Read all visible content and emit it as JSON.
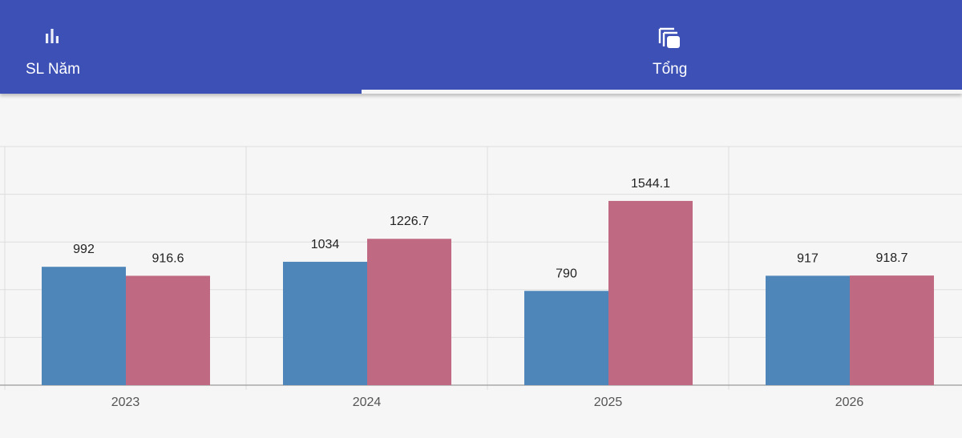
{
  "tabs": [
    {
      "label": "SL Năm",
      "icon": "bar-chart-icon",
      "selected": false
    },
    {
      "label": "Tổng",
      "icon": "layers-icon",
      "selected": true
    }
  ],
  "colors": {
    "app_bar": "#3c50b5",
    "series_a": "#4e86b9",
    "series_b": "#c06983",
    "grid": "#dddddd"
  },
  "chart_data": {
    "type": "bar",
    "categories": [
      "2023",
      "2024",
      "2025",
      "2026"
    ],
    "series": [
      {
        "values": [
          992,
          1034,
          790,
          917
        ]
      },
      {
        "values": [
          916.6,
          1226.7,
          1544.1,
          918.7
        ]
      }
    ],
    "ylim": [
      0,
      2000
    ],
    "grid": true,
    "legend": "none"
  }
}
